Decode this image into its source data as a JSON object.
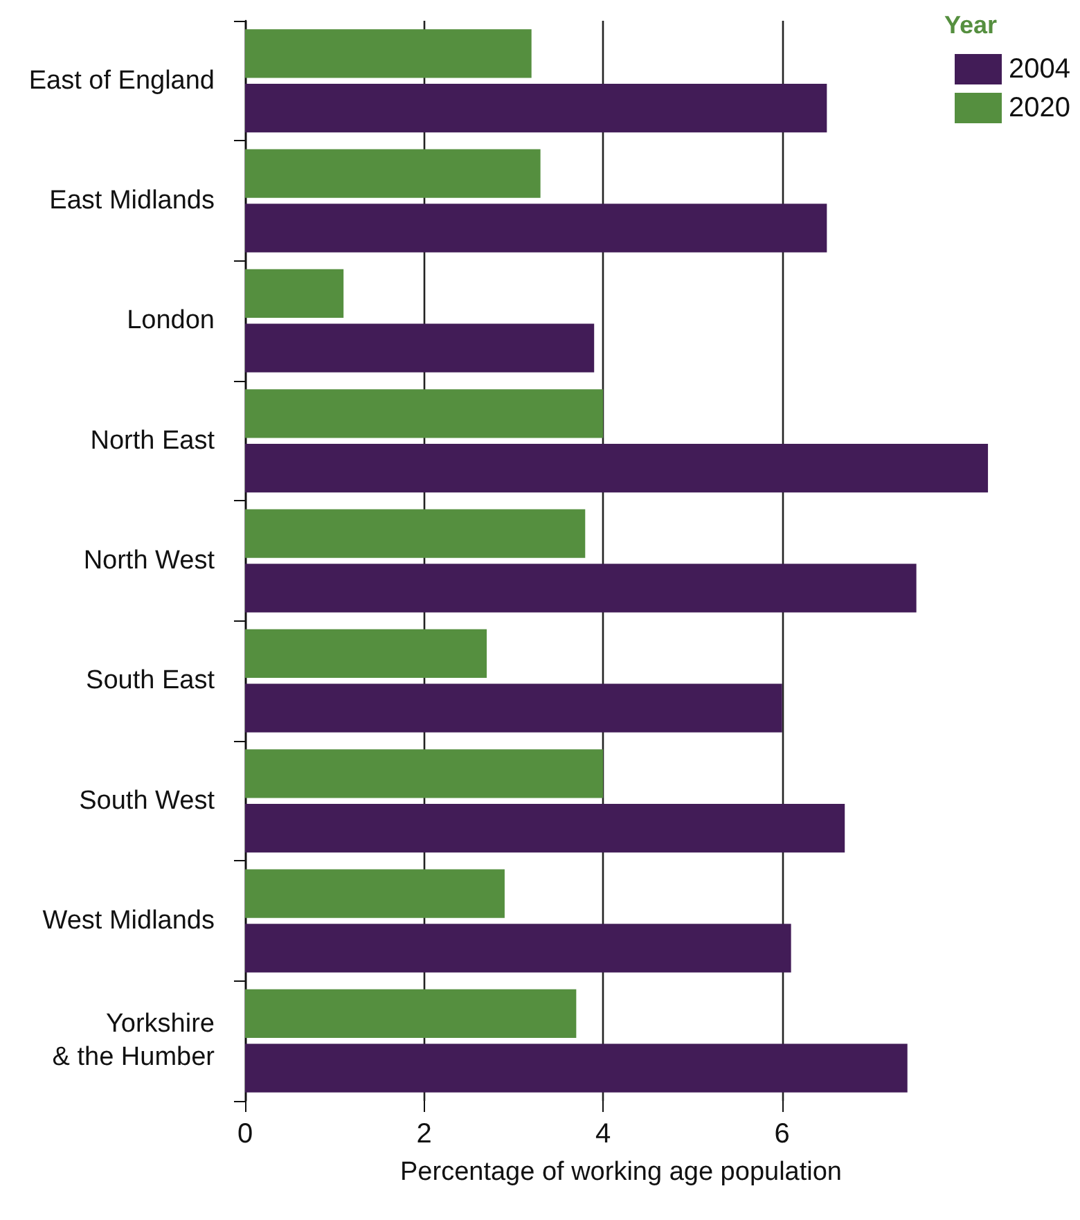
{
  "chart_data": {
    "type": "bar",
    "orientation": "horizontal",
    "categories": [
      "East of England",
      "East Midlands",
      "London",
      "North East",
      "North West",
      "South East",
      "South West",
      "West Midlands",
      "Yorkshire\n& the Humber"
    ],
    "series": [
      {
        "name": "2004",
        "color": "#421c57",
        "values": [
          6.5,
          6.5,
          3.9,
          8.3,
          7.5,
          6.0,
          6.7,
          6.1,
          7.4
        ]
      },
      {
        "name": "2020",
        "color": "#558f3f",
        "values": [
          3.2,
          3.3,
          1.1,
          4.0,
          3.8,
          2.7,
          4.0,
          2.9,
          3.7
        ]
      }
    ],
    "xlabel": "Percentage of working age population",
    "legend_title": "Year",
    "xlim": [
      0,
      8.4
    ],
    "xticks": [
      0,
      2,
      4,
      6
    ],
    "grid": "x",
    "legend": "top right"
  }
}
